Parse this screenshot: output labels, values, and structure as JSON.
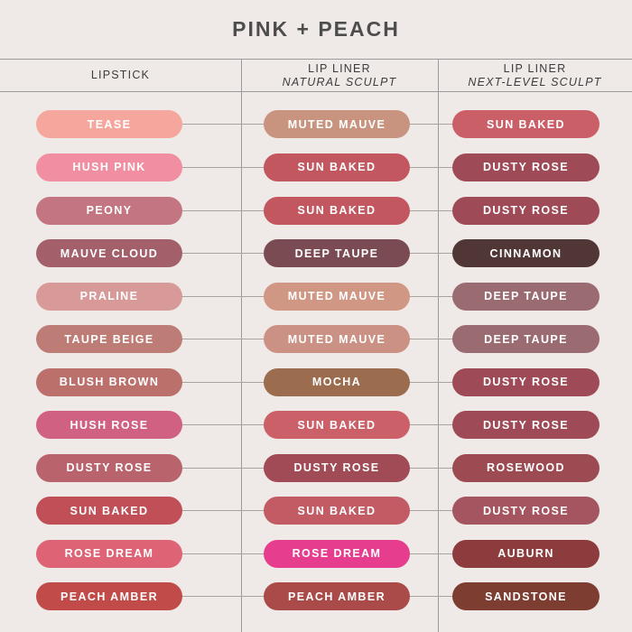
{
  "title": "PINK + PEACH",
  "header": {
    "columns": [
      {
        "label": "LIPSTICK",
        "sublabel": ""
      },
      {
        "label": "LIP LINER",
        "sublabel": "NATURAL SCULPT"
      },
      {
        "label": "LIP LINER",
        "sublabel": "NEXT-LEVEL SCULPT"
      }
    ]
  },
  "colors": {
    "background": "#EFEAE7",
    "rule_line": "#9B9B9B",
    "connector_line": "#A9A39E",
    "title_text": "#4D4D4D",
    "header_text": "#3C3C3C",
    "swatch_text": "#FFFFFF"
  },
  "chart_data": {
    "type": "table",
    "title": "PINK + PEACH",
    "columns": [
      "LIPSTICK",
      "LIP LINER NATURAL SCULPT",
      "LIP LINER NEXT-LEVEL SCULPT"
    ],
    "rows": [
      [
        {
          "name": "TEASE",
          "color": "#F5A79D"
        },
        {
          "name": "MUTED MAUVE",
          "color": "#C9947F"
        },
        {
          "name": "SUN BAKED",
          "color": "#CB5F67"
        }
      ],
      [
        {
          "name": "HUSH PINK",
          "color": "#F28EA1"
        },
        {
          "name": "SUN BAKED",
          "color": "#C3575F"
        },
        {
          "name": "DUSTY ROSE",
          "color": "#9E4B57"
        }
      ],
      [
        {
          "name": "PEONY",
          "color": "#C37681"
        },
        {
          "name": "SUN BAKED",
          "color": "#C3575F"
        },
        {
          "name": "DUSTY ROSE",
          "color": "#9E4B57"
        }
      ],
      [
        {
          "name": "MAUVE CLOUD",
          "color": "#A3606A"
        },
        {
          "name": "DEEP TAUPE",
          "color": "#7B4B53"
        },
        {
          "name": "CINNAMON",
          "color": "#503735"
        }
      ],
      [
        {
          "name": "PRALINE",
          "color": "#D89A98"
        },
        {
          "name": "MUTED MAUVE",
          "color": "#D09784"
        },
        {
          "name": "DEEP TAUPE",
          "color": "#9A6C72"
        }
      ],
      [
        {
          "name": "TAUPE BEIGE",
          "color": "#BE7C77"
        },
        {
          "name": "MUTED MAUVE",
          "color": "#CA9184"
        },
        {
          "name": "DEEP TAUPE",
          "color": "#9A6C72"
        }
      ],
      [
        {
          "name": "BLUSH BROWN",
          "color": "#BC706C"
        },
        {
          "name": "MOCHA",
          "color": "#9C6C4E"
        },
        {
          "name": "DUSTY ROSE",
          "color": "#9E4B57"
        }
      ],
      [
        {
          "name": "HUSH ROSE",
          "color": "#D06183"
        },
        {
          "name": "SUN BAKED",
          "color": "#CC6069"
        },
        {
          "name": "DUSTY ROSE",
          "color": "#9E4B57"
        }
      ],
      [
        {
          "name": "DUSTY ROSE",
          "color": "#B9636C"
        },
        {
          "name": "DUSTY ROSE",
          "color": "#A04B56"
        },
        {
          "name": "ROSEWOOD",
          "color": "#9C4B53"
        }
      ],
      [
        {
          "name": "SUN BAKED",
          "color": "#C04F58"
        },
        {
          "name": "SUN BAKED",
          "color": "#C25B63"
        },
        {
          "name": "DUSTY ROSE",
          "color": "#A4555F"
        }
      ],
      [
        {
          "name": "ROSE DREAM",
          "color": "#DE6375"
        },
        {
          "name": "ROSE DREAM",
          "color": "#E73D8E"
        },
        {
          "name": "AUBURN",
          "color": "#8C3C3C"
        }
      ],
      [
        {
          "name": "PEACH AMBER",
          "color": "#C14B49"
        },
        {
          "name": "PEACH AMBER",
          "color": "#AA4B49"
        },
        {
          "name": "SANDSTONE",
          "color": "#7D3D31"
        }
      ]
    ]
  }
}
